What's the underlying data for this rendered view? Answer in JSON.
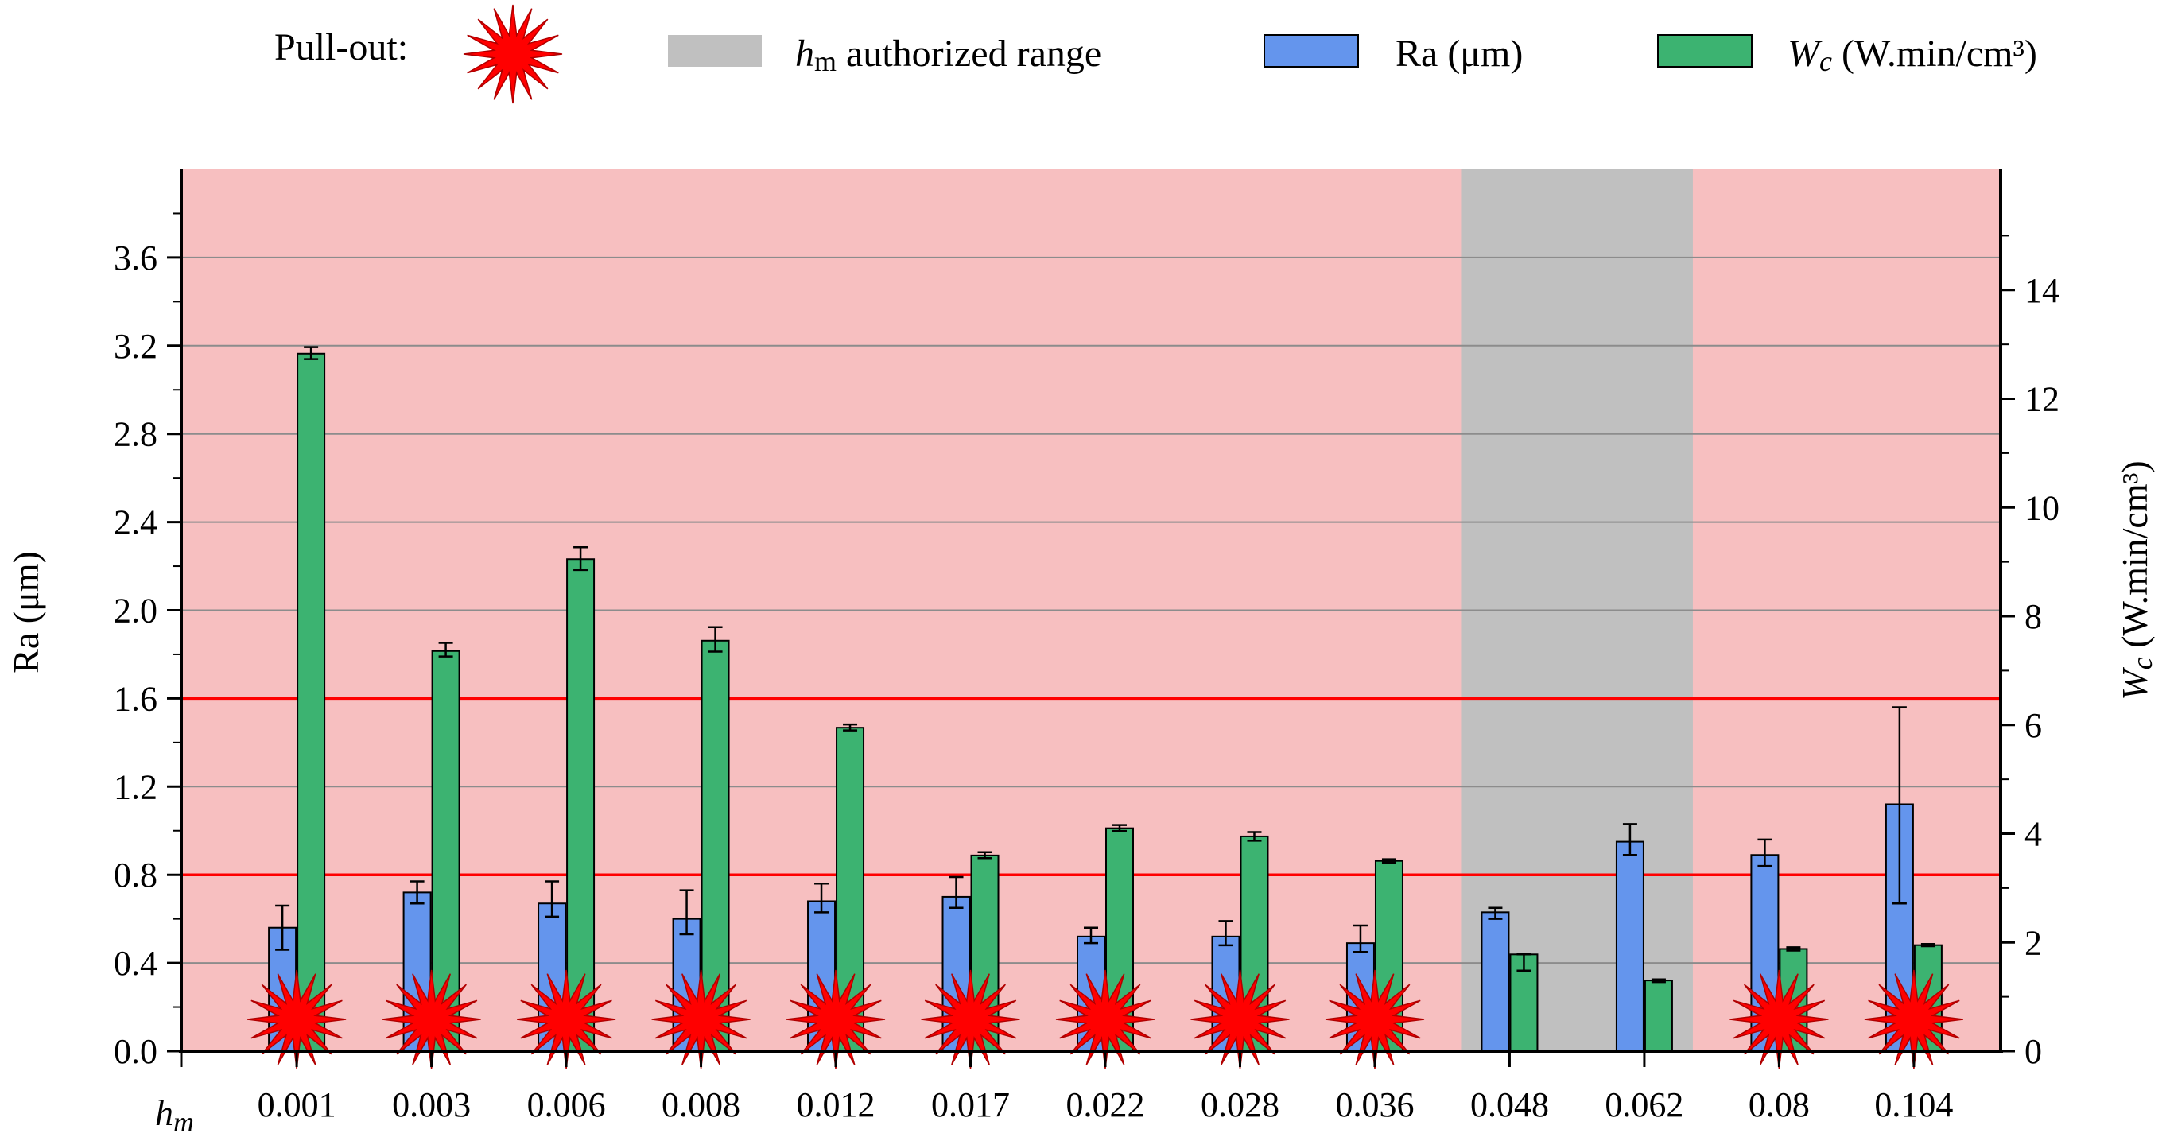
{
  "chart_data": {
    "type": "bar",
    "categories": [
      "0.001",
      "0.003",
      "0.006",
      "0.008",
      "0.012",
      "0.017",
      "0.022",
      "0.028",
      "0.036",
      "0.048",
      "0.062",
      "0.08",
      "0.104"
    ],
    "x_axis_label": "h_m",
    "y_left": {
      "label": "Ra (μm)",
      "ylim": [
        0,
        4.0
      ],
      "ticks": [
        "0.0",
        "0.4",
        "0.8",
        "1.2",
        "1.6",
        "2.0",
        "2.4",
        "2.8",
        "3.2",
        "3.6"
      ]
    },
    "y_right": {
      "label": "W_c (W.min/cm³)",
      "ylim": [
        0,
        16.22
      ],
      "ticks": [
        "0",
        "2",
        "4",
        "6",
        "8",
        "10",
        "12",
        "14"
      ]
    },
    "series": [
      {
        "name": "Ra (μm)",
        "axis": "left",
        "color": "#6495ED",
        "values": [
          0.56,
          0.72,
          0.67,
          0.6,
          0.68,
          0.7,
          0.52,
          0.52,
          0.49,
          0.63,
          0.95,
          0.89,
          1.12
        ],
        "err_low": [
          0.1,
          0.05,
          0.06,
          0.07,
          0.05,
          0.05,
          0.03,
          0.04,
          0.04,
          0.03,
          0.06,
          0.05,
          0.45
        ],
        "err_high": [
          0.1,
          0.05,
          0.1,
          0.13,
          0.08,
          0.09,
          0.04,
          0.07,
          0.08,
          0.02,
          0.08,
          0.07,
          0.44
        ]
      },
      {
        "name": "W_c (W.min/cm³)",
        "axis": "right",
        "color": "#3CB371",
        "values": [
          12.83,
          7.36,
          9.05,
          7.55,
          5.95,
          3.6,
          4.1,
          3.95,
          3.5,
          1.78,
          1.3,
          1.88,
          1.95
        ],
        "err_low": [
          0.1,
          0.1,
          0.2,
          0.2,
          0.05,
          0.05,
          0.05,
          0.08,
          0.03,
          0.3,
          0.03,
          0.03,
          0.02
        ],
        "err_high": [
          0.12,
          0.15,
          0.22,
          0.25,
          0.06,
          0.06,
          0.06,
          0.08,
          0.03,
          0.0,
          0.02,
          0.03,
          0.02
        ]
      }
    ],
    "pull_out": [
      true,
      true,
      true,
      true,
      true,
      true,
      true,
      true,
      true,
      false,
      false,
      true,
      true
    ],
    "authorized_range": [
      "0.048",
      "0.062"
    ],
    "ref_lines_left": [
      0.8,
      1.6
    ],
    "grid": true,
    "legend": {
      "pull_out_label": "Pull-out:",
      "range_label_italic": "h",
      "range_label_sub": "m",
      "range_label_rest": " authorized range",
      "ra_label": "Ra (μm)",
      "wc_label_italic": "W",
      "wc_label_sub": "c",
      "wc_label_rest": " (W.min/cm³)"
    },
    "colors": {
      "background": "#F7BFC0",
      "authorized": "#C0C0C0",
      "ref_line": "#FF0000",
      "grid": "#8C8C8C",
      "star": "#FF0000"
    }
  }
}
